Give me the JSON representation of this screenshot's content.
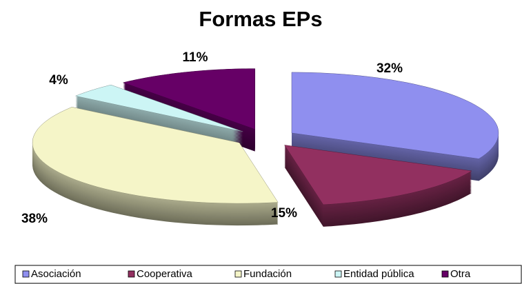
{
  "chart_data": {
    "type": "pie",
    "title": "Formas EPs",
    "categories": [
      "Asociación",
      "Cooperativa",
      "Fundación",
      "Entidad pública",
      "Otra"
    ],
    "values": [
      32,
      15,
      38,
      4,
      11
    ],
    "value_labels": [
      "32%",
      "15%",
      "38%",
      "4%",
      "11%"
    ],
    "colors": [
      "#8f8fef",
      "#923060",
      "#f5f5c8",
      "#ccf5f5",
      "#660066"
    ],
    "legend": "bottom"
  }
}
